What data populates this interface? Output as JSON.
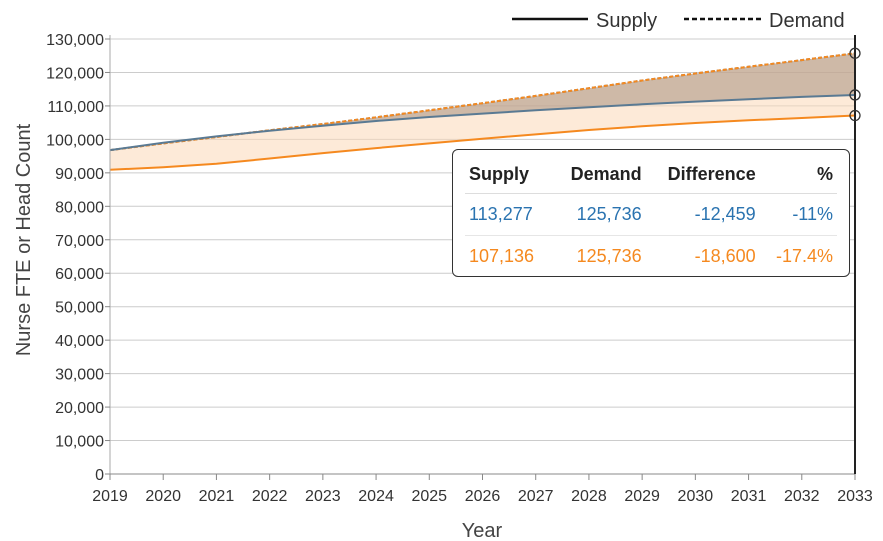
{
  "chart_data": {
    "type": "line",
    "title": "",
    "xlabel": "Year",
    "ylabel": "Nurse FTE or Head Count",
    "x": [
      2019,
      2020,
      2021,
      2022,
      2023,
      2024,
      2025,
      2026,
      2027,
      2028,
      2029,
      2030,
      2031,
      2032,
      2033
    ],
    "xlim": [
      2019,
      2033
    ],
    "ylim": [
      0,
      130000
    ],
    "y_ticks": [
      0,
      10000,
      20000,
      30000,
      40000,
      50000,
      60000,
      70000,
      80000,
      90000,
      100000,
      110000,
      120000,
      130000
    ],
    "y_tick_labels": [
      "0",
      "10,000",
      "20,000",
      "30,000",
      "40,000",
      "50,000",
      "60,000",
      "70,000",
      "80,000",
      "90,000",
      "100,000",
      "110,000",
      "120,000",
      "130,000"
    ],
    "grid": true,
    "legend": [
      {
        "label": "Supply",
        "style": "solid"
      },
      {
        "label": "Demand",
        "style": "dashed"
      }
    ],
    "legend_position": "top-right",
    "series": [
      {
        "name": "Demand (blue scenario)",
        "style": "dashed",
        "color": "#5a7a93",
        "values": [
          96800,
          98800,
          100700,
          102700,
          104600,
          106600,
          108700,
          110800,
          113000,
          115300,
          117600,
          119700,
          121700,
          123700,
          125736
        ]
      },
      {
        "name": "Demand (orange scenario)",
        "style": "dashed",
        "color": "#f5891f",
        "values": [
          96800,
          98800,
          100700,
          102700,
          104600,
          106600,
          108700,
          110800,
          113000,
          115300,
          117600,
          119700,
          121700,
          123700,
          125736
        ]
      },
      {
        "name": "Supply (blue scenario)",
        "style": "solid",
        "color": "#5a7a93",
        "values": [
          96800,
          99000,
          100900,
          102600,
          104100,
          105500,
          106700,
          107700,
          108700,
          109600,
          110500,
          111300,
          112000,
          112700,
          113277
        ]
      },
      {
        "name": "Supply (orange scenario)",
        "style": "solid",
        "color": "#f5891f",
        "values": [
          90900,
          91700,
          92700,
          94300,
          95900,
          97400,
          98800,
          100200,
          101500,
          102800,
          103900,
          104900,
          105700,
          106400,
          107136
        ]
      }
    ],
    "shaded_gaps": [
      {
        "between": [
          "Supply (blue scenario)",
          "Demand (blue scenario)"
        ],
        "color": "#a89080"
      },
      {
        "between": [
          "Supply (orange scenario)",
          "Demand (orange scenario)"
        ],
        "color": "#fcd9b8"
      }
    ],
    "hover_year": 2033,
    "tooltip": {
      "headers": [
        "Supply",
        "Demand",
        "Difference",
        "%"
      ],
      "rows": [
        {
          "color": "#2a73b0",
          "supply": "113,277",
          "demand": "125,736",
          "difference": "-12,459",
          "percent": "-11%"
        },
        {
          "color": "#f5891f",
          "supply": "107,136",
          "demand": "125,736",
          "difference": "-18,600",
          "percent": "-17.4%"
        }
      ]
    }
  }
}
